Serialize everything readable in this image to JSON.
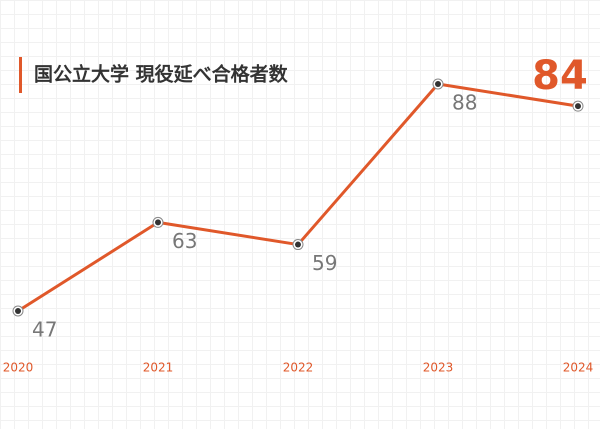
{
  "chart_data": {
    "type": "line",
    "title": "国公立大学 現役延べ合格者数",
    "categories": [
      "2020",
      "2021",
      "2022",
      "2023",
      "2024"
    ],
    "values": [
      47,
      63,
      59,
      88,
      84
    ],
    "color": "#e0582a"
  }
}
